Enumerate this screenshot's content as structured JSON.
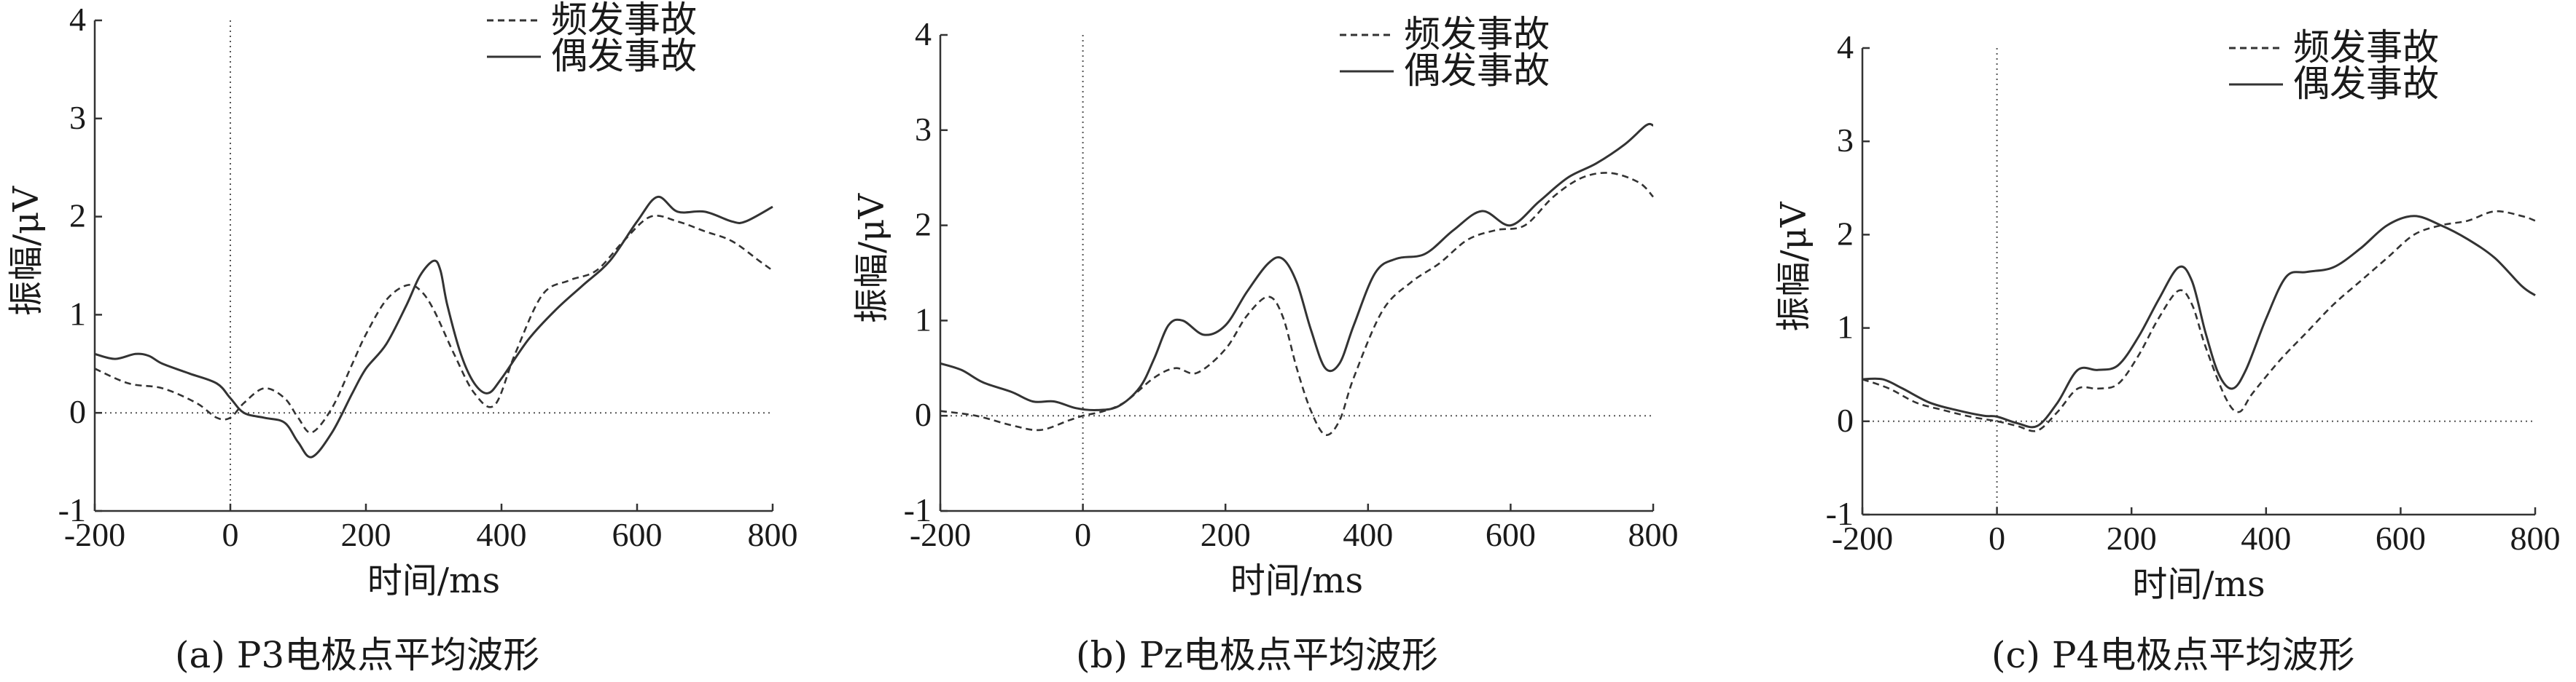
{
  "chart_data": [
    {
      "type": "line",
      "caption": "(a) P3电极点平均波形",
      "xlabel": "时间/ms",
      "ylabel": "振幅/μV",
      "xlim": [
        -200,
        800
      ],
      "ylim": [
        -1,
        4
      ],
      "xticks": [
        -200,
        0,
        200,
        400,
        600,
        800
      ],
      "yticks": [
        -1,
        0,
        1,
        2,
        3,
        4
      ],
      "legend_position": "top-right",
      "series": [
        {
          "name": "频发事故",
          "style": "dashed",
          "x": [
            -200,
            -150,
            -100,
            -50,
            -20,
            0,
            20,
            50,
            80,
            100,
            120,
            150,
            180,
            200,
            230,
            260,
            280,
            300,
            330,
            360,
            390,
            420,
            460,
            500,
            540,
            580,
            620,
            660,
            700,
            740,
            780,
            800
          ],
          "y": [
            0.45,
            0.3,
            0.25,
            0.1,
            -0.05,
            -0.05,
            0.1,
            0.25,
            0.15,
            -0.05,
            -0.2,
            0.05,
            0.5,
            0.8,
            1.15,
            1.3,
            1.25,
            1.05,
            0.6,
            0.2,
            0.08,
            0.6,
            1.2,
            1.35,
            1.45,
            1.75,
            2.0,
            1.95,
            1.85,
            1.75,
            1.55,
            1.45
          ]
        },
        {
          "name": "偶发事故",
          "style": "solid",
          "x": [
            -200,
            -170,
            -140,
            -120,
            -100,
            -60,
            -20,
            0,
            20,
            50,
            80,
            100,
            120,
            150,
            180,
            200,
            230,
            260,
            280,
            300,
            310,
            320,
            340,
            360,
            380,
            400,
            440,
            480,
            520,
            560,
            600,
            630,
            660,
            700,
            740,
            760,
            800
          ],
          "y": [
            0.6,
            0.55,
            0.6,
            0.58,
            0.5,
            0.4,
            0.3,
            0.15,
            0.0,
            -0.05,
            -0.1,
            -0.3,
            -0.45,
            -0.2,
            0.2,
            0.45,
            0.7,
            1.1,
            1.4,
            1.55,
            1.45,
            1.1,
            0.6,
            0.3,
            0.2,
            0.35,
            0.75,
            1.05,
            1.3,
            1.55,
            1.95,
            2.2,
            2.05,
            2.05,
            1.95,
            1.95,
            2.1
          ]
        }
      ]
    },
    {
      "type": "line",
      "caption": "(b) Pz电极点平均波形",
      "xlabel": "时间/ms",
      "ylabel": "振幅/μV",
      "xlim": [
        -200,
        800
      ],
      "ylim": [
        -1,
        4
      ],
      "xticks": [
        -200,
        0,
        200,
        400,
        600,
        800
      ],
      "yticks": [
        -1,
        0,
        1,
        2,
        3,
        4
      ],
      "legend_position": "top-right",
      "series": [
        {
          "name": "频发事故",
          "style": "dashed",
          "x": [
            -200,
            -150,
            -100,
            -60,
            -20,
            0,
            30,
            60,
            100,
            130,
            160,
            200,
            230,
            260,
            280,
            300,
            320,
            340,
            360,
            380,
            420,
            460,
            500,
            540,
            580,
            620,
            660,
            700,
            740,
            780,
            800
          ],
          "y": [
            0.05,
            0.0,
            -0.1,
            -0.15,
            -0.05,
            0.0,
            0.05,
            0.15,
            0.4,
            0.5,
            0.45,
            0.7,
            1.05,
            1.25,
            1.05,
            0.5,
            0.05,
            -0.2,
            -0.05,
            0.4,
            1.1,
            1.4,
            1.6,
            1.85,
            1.95,
            2.0,
            2.3,
            2.5,
            2.55,
            2.45,
            2.3
          ]
        },
        {
          "name": "偶发事故",
          "style": "solid",
          "x": [
            -200,
            -170,
            -140,
            -100,
            -70,
            -40,
            -10,
            20,
            50,
            80,
            100,
            120,
            140,
            170,
            200,
            230,
            260,
            280,
            300,
            320,
            340,
            360,
            380,
            410,
            440,
            480,
            520,
            560,
            600,
            640,
            680,
            720,
            760,
            790,
            800
          ],
          "y": [
            0.55,
            0.48,
            0.35,
            0.25,
            0.15,
            0.15,
            0.08,
            0.06,
            0.1,
            0.3,
            0.6,
            0.95,
            1.0,
            0.85,
            0.95,
            1.3,
            1.6,
            1.65,
            1.4,
            0.9,
            0.5,
            0.55,
            0.95,
            1.5,
            1.65,
            1.7,
            1.95,
            2.15,
            2.0,
            2.25,
            2.5,
            2.65,
            2.85,
            3.05,
            3.05
          ]
        }
      ]
    },
    {
      "type": "line",
      "caption": "(c) P4电极点平均波形",
      "xlabel": "时间/ms",
      "ylabel": "振幅/μV",
      "xlim": [
        -200,
        800
      ],
      "ylim": [
        -1,
        4
      ],
      "xticks": [
        -200,
        0,
        200,
        400,
        600,
        800
      ],
      "yticks": [
        -1,
        0,
        1,
        2,
        3,
        4
      ],
      "legend_position": "top-right",
      "series": [
        {
          "name": "频发事故",
          "style": "dashed",
          "x": [
            -200,
            -160,
            -120,
            -80,
            -40,
            0,
            30,
            60,
            90,
            120,
            150,
            180,
            210,
            240,
            270,
            290,
            310,
            340,
            360,
            380,
            420,
            460,
            500,
            540,
            580,
            620,
            660,
            700,
            740,
            780,
            800
          ],
          "y": [
            0.45,
            0.35,
            0.2,
            0.12,
            0.05,
            0.0,
            -0.05,
            -0.1,
            0.1,
            0.35,
            0.35,
            0.4,
            0.7,
            1.1,
            1.4,
            1.25,
            0.8,
            0.25,
            0.1,
            0.3,
            0.65,
            0.95,
            1.25,
            1.5,
            1.75,
            2.0,
            2.1,
            2.15,
            2.25,
            2.2,
            2.15
          ]
        },
        {
          "name": "偶发事故",
          "style": "solid",
          "x": [
            -200,
            -170,
            -140,
            -100,
            -60,
            -20,
            0,
            30,
            60,
            90,
            120,
            150,
            180,
            210,
            240,
            270,
            290,
            310,
            330,
            350,
            370,
            400,
            430,
            460,
            500,
            540,
            580,
            620,
            660,
            700,
            740,
            780,
            800
          ],
          "y": [
            0.45,
            0.45,
            0.35,
            0.2,
            0.12,
            0.06,
            0.05,
            -0.02,
            -0.05,
            0.2,
            0.55,
            0.55,
            0.6,
            0.9,
            1.3,
            1.65,
            1.5,
            0.95,
            0.5,
            0.35,
            0.55,
            1.1,
            1.55,
            1.6,
            1.65,
            1.85,
            2.1,
            2.2,
            2.1,
            1.95,
            1.75,
            1.45,
            1.35
          ]
        }
      ]
    }
  ]
}
